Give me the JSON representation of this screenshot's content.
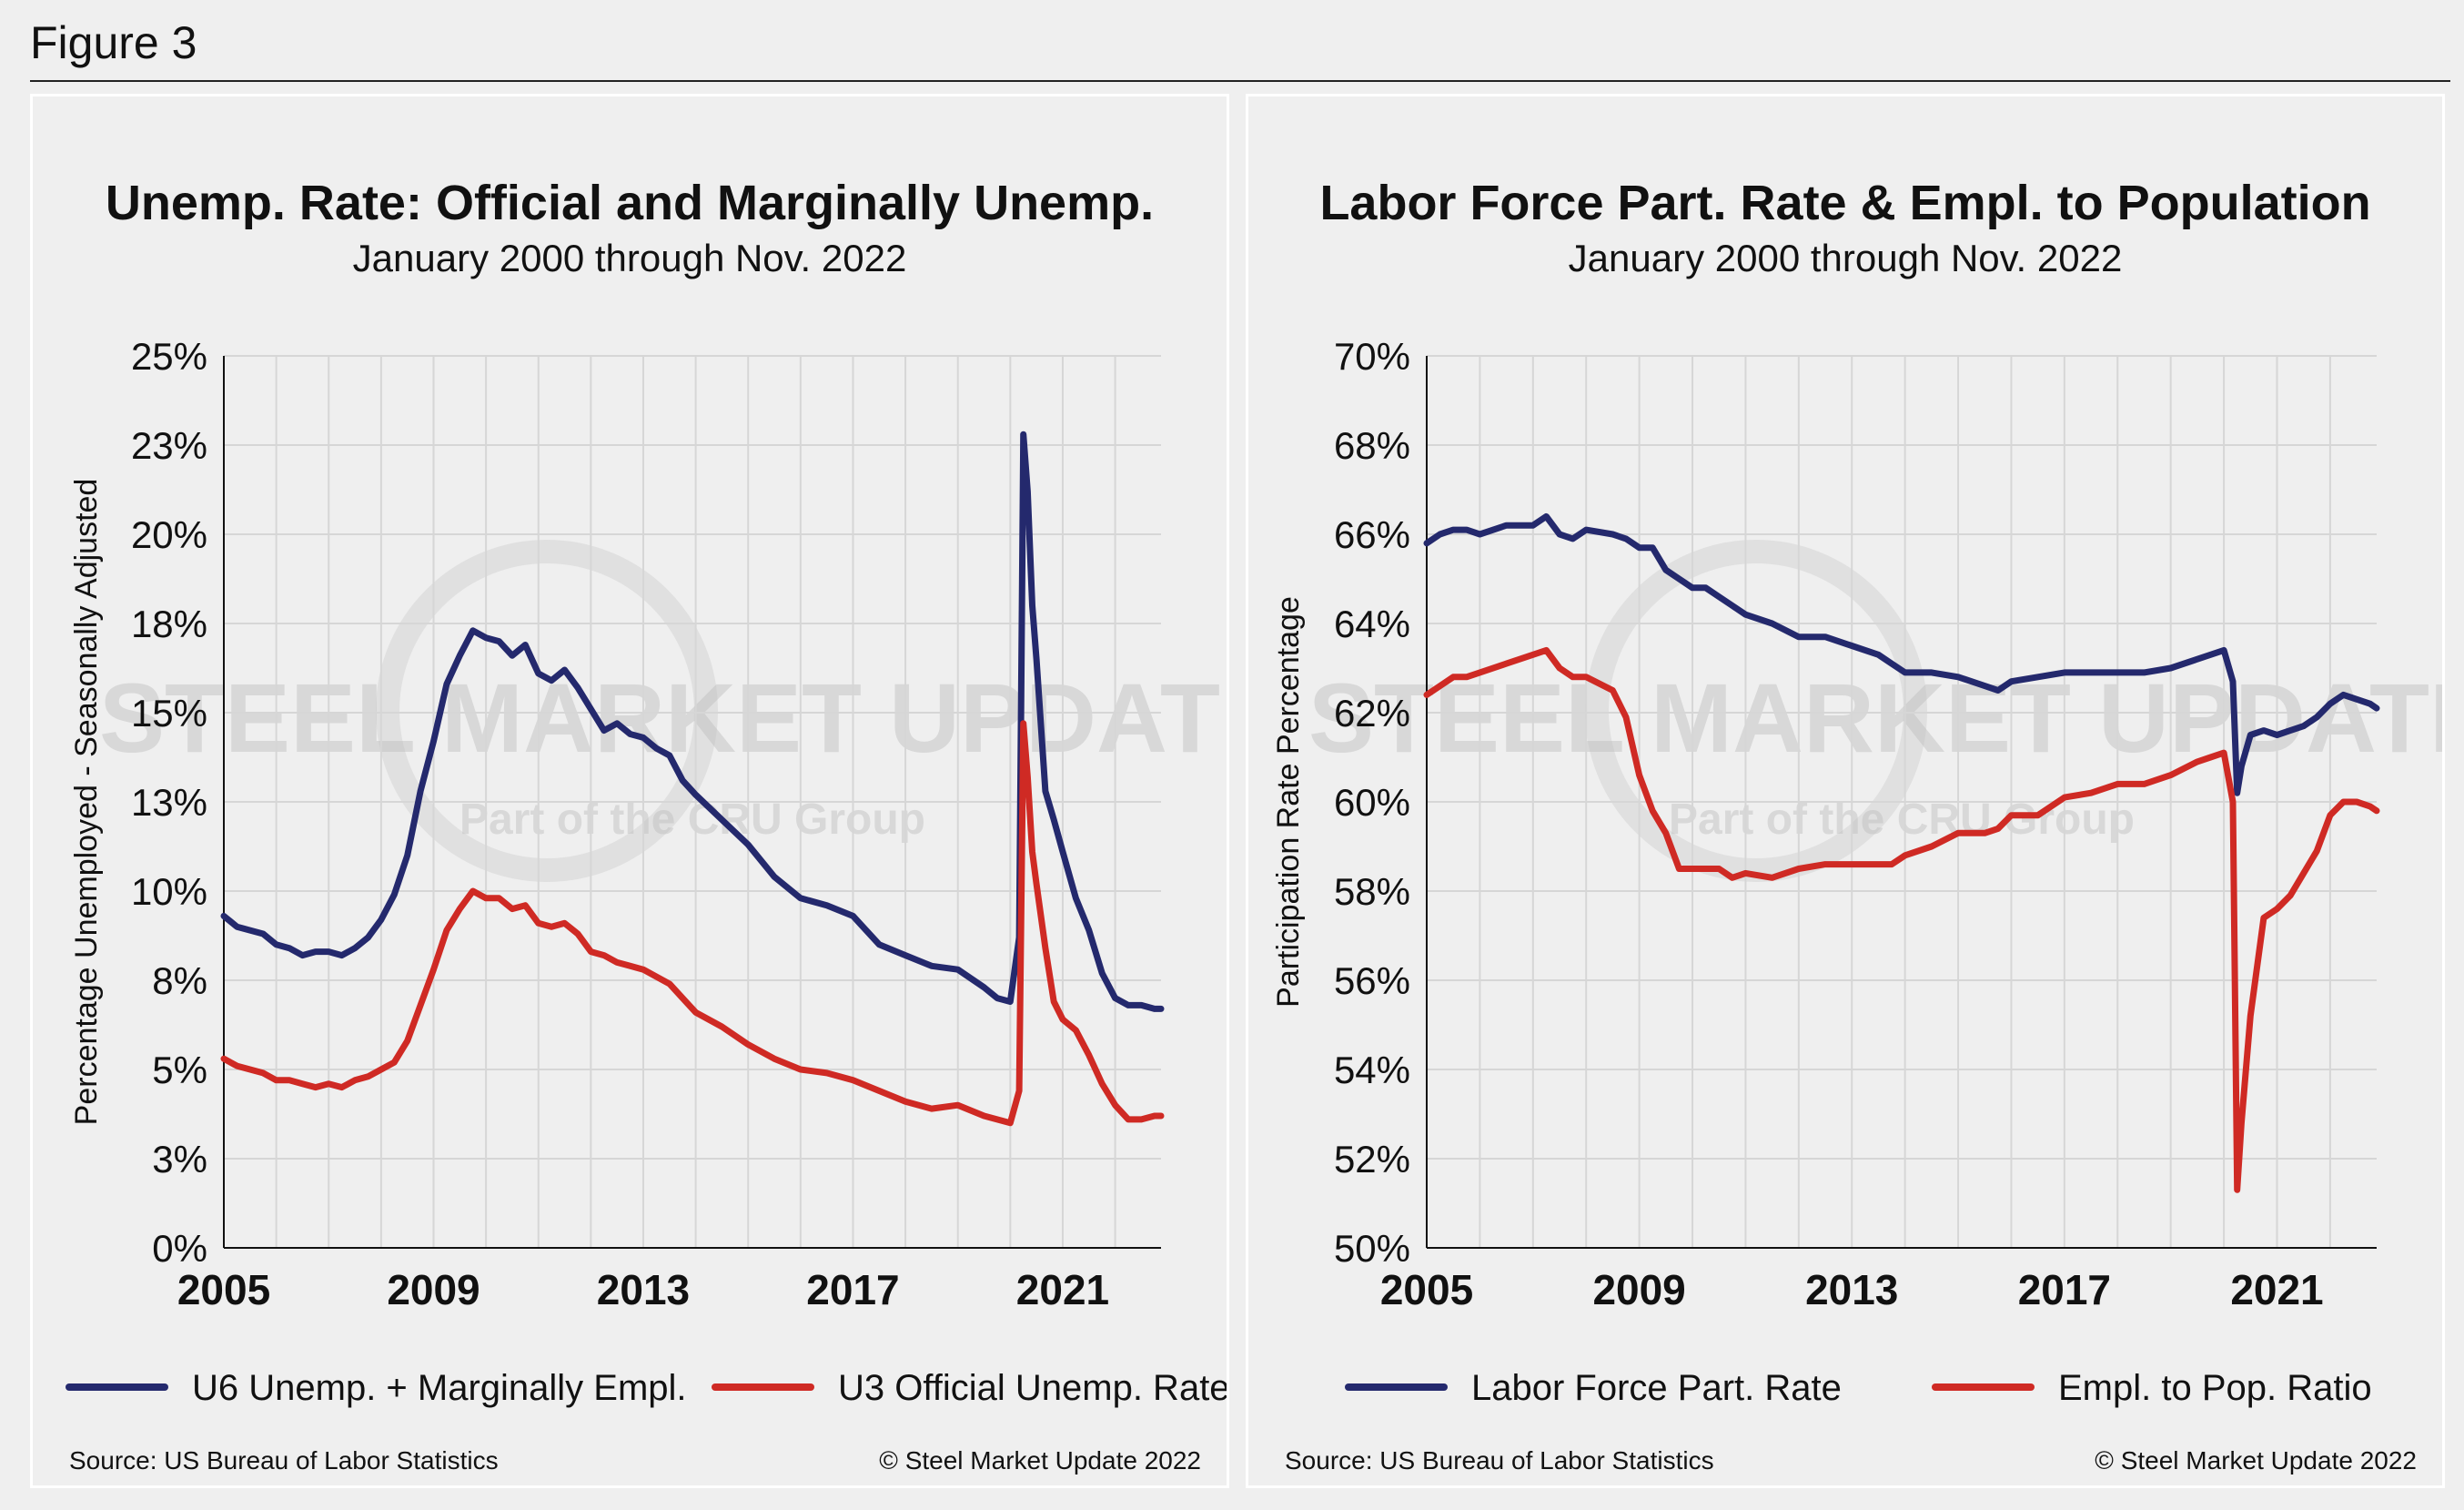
{
  "figure_label": "Figure 3",
  "colors": {
    "u6": "#24296d",
    "u3": "#cf2a24",
    "grid": "#d6d6d6",
    "axis": "#111111"
  },
  "watermark": {
    "brand": "STEEL MARKET UPDATE",
    "sub": "Part of the CRU Group",
    "logo": "CRU"
  },
  "chart_data": [
    {
      "type": "line",
      "title": "Unemp. Rate: Official and Marginally Unemp.",
      "subtitle": "January 2000 through Nov. 2022",
      "xlabel": "",
      "ylabel": "Percentage Unemployed - Seasonally Adjusted",
      "xlim": [
        2005.0,
        2022.875
      ],
      "ylim": [
        0,
        25
      ],
      "x_ticks": [
        2005,
        2009,
        2013,
        2017,
        2021
      ],
      "y_ticks": [
        0,
        2.5,
        5,
        7.5,
        10,
        12.5,
        15,
        17.5,
        20,
        22.5,
        25
      ],
      "y_tick_labels": [
        "0%",
        "3%",
        "5%",
        "8%",
        "10%",
        "13%",
        "15%",
        "18%",
        "20%",
        "23%",
        "25%"
      ],
      "legend_position": "bottom",
      "series": [
        {
          "name": "U6 Unemp. + Marginally Empl.",
          "x": [
            2005.0,
            2005.25,
            2005.5,
            2005.75,
            2006.0,
            2006.25,
            2006.5,
            2006.75,
            2007.0,
            2007.25,
            2007.5,
            2007.75,
            2008.0,
            2008.25,
            2008.5,
            2008.75,
            2009.0,
            2009.25,
            2009.5,
            2009.75,
            2010.0,
            2010.25,
            2010.5,
            2010.75,
            2011.0,
            2011.25,
            2011.5,
            2011.75,
            2012.0,
            2012.25,
            2012.5,
            2012.75,
            2013.0,
            2013.25,
            2013.5,
            2013.75,
            2014.0,
            2014.5,
            2015.0,
            2015.5,
            2016.0,
            2016.5,
            2017.0,
            2017.5,
            2018.0,
            2018.5,
            2019.0,
            2019.5,
            2019.75,
            2020.0,
            2020.17,
            2020.25,
            2020.33,
            2020.42,
            2020.5,
            2020.67,
            2020.83,
            2021.0,
            2021.25,
            2021.5,
            2021.75,
            2022.0,
            2022.25,
            2022.5,
            2022.75,
            2022.875
          ],
          "values": [
            9.3,
            9.0,
            8.9,
            8.8,
            8.5,
            8.4,
            8.2,
            8.3,
            8.3,
            8.2,
            8.4,
            8.7,
            9.2,
            9.9,
            11.0,
            12.8,
            14.2,
            15.8,
            16.6,
            17.3,
            17.1,
            17.0,
            16.6,
            16.9,
            16.1,
            15.9,
            16.2,
            15.7,
            15.1,
            14.5,
            14.7,
            14.4,
            14.3,
            14.0,
            13.8,
            13.1,
            12.7,
            12.0,
            11.3,
            10.4,
            9.8,
            9.6,
            9.3,
            8.5,
            8.2,
            7.9,
            7.8,
            7.3,
            7.0,
            6.9,
            8.7,
            22.8,
            21.2,
            18.0,
            16.5,
            12.8,
            12.0,
            11.1,
            9.8,
            8.9,
            7.7,
            7.0,
            6.8,
            6.8,
            6.7,
            6.7
          ]
        },
        {
          "name": "U3 Official Unemp. Rate",
          "x": [
            2005.0,
            2005.25,
            2005.5,
            2005.75,
            2006.0,
            2006.25,
            2006.5,
            2006.75,
            2007.0,
            2007.25,
            2007.5,
            2007.75,
            2008.0,
            2008.25,
            2008.5,
            2008.75,
            2009.0,
            2009.25,
            2009.5,
            2009.75,
            2010.0,
            2010.25,
            2010.5,
            2010.75,
            2011.0,
            2011.25,
            2011.5,
            2011.75,
            2012.0,
            2012.25,
            2012.5,
            2012.75,
            2013.0,
            2013.25,
            2013.5,
            2013.75,
            2014.0,
            2014.5,
            2015.0,
            2015.5,
            2016.0,
            2016.5,
            2017.0,
            2017.5,
            2018.0,
            2018.5,
            2019.0,
            2019.5,
            2019.75,
            2020.0,
            2020.17,
            2020.25,
            2020.33,
            2020.42,
            2020.5,
            2020.67,
            2020.83,
            2021.0,
            2021.25,
            2021.5,
            2021.75,
            2022.0,
            2022.25,
            2022.5,
            2022.75,
            2022.875
          ],
          "values": [
            5.3,
            5.1,
            5.0,
            4.9,
            4.7,
            4.7,
            4.6,
            4.5,
            4.6,
            4.5,
            4.7,
            4.8,
            5.0,
            5.2,
            5.8,
            6.8,
            7.8,
            8.9,
            9.5,
            10.0,
            9.8,
            9.8,
            9.5,
            9.6,
            9.1,
            9.0,
            9.1,
            8.8,
            8.3,
            8.2,
            8.0,
            7.9,
            7.8,
            7.6,
            7.4,
            7.0,
            6.6,
            6.2,
            5.7,
            5.3,
            5.0,
            4.9,
            4.7,
            4.4,
            4.1,
            3.9,
            4.0,
            3.7,
            3.6,
            3.5,
            4.4,
            14.7,
            13.2,
            11.1,
            10.2,
            8.4,
            6.9,
            6.4,
            6.1,
            5.4,
            4.6,
            4.0,
            3.6,
            3.6,
            3.7,
            3.7
          ]
        }
      ]
    },
    {
      "type": "line",
      "title": "Labor Force Part. Rate & Empl. to Population",
      "subtitle": "January 2000 through Nov. 2022",
      "xlabel": "",
      "ylabel": "Participation Rate Percentage",
      "xlim": [
        2005.0,
        2022.875
      ],
      "ylim": [
        50,
        70
      ],
      "x_ticks": [
        2005,
        2009,
        2013,
        2017,
        2021
      ],
      "y_ticks": [
        50,
        52,
        54,
        56,
        58,
        60,
        62,
        64,
        66,
        68,
        70
      ],
      "y_tick_labels": [
        "50%",
        "52%",
        "54%",
        "56%",
        "58%",
        "60%",
        "62%",
        "64%",
        "66%",
        "68%",
        "70%"
      ],
      "legend_position": "bottom",
      "series": [
        {
          "name": "Labor Force Part. Rate",
          "x": [
            2005.0,
            2005.25,
            2005.5,
            2005.75,
            2006.0,
            2006.5,
            2007.0,
            2007.25,
            2007.5,
            2007.75,
            2008.0,
            2008.5,
            2008.75,
            2009.0,
            2009.25,
            2009.5,
            2009.75,
            2010.0,
            2010.25,
            2010.5,
            2010.75,
            2011.0,
            2011.5,
            2012.0,
            2012.5,
            2013.0,
            2013.5,
            2013.75,
            2014.0,
            2014.5,
            2015.0,
            2015.5,
            2015.75,
            2016.0,
            2016.5,
            2017.0,
            2017.5,
            2018.0,
            2018.5,
            2019.0,
            2019.5,
            2019.75,
            2020.0,
            2020.17,
            2020.25,
            2020.33,
            2020.5,
            2020.75,
            2021.0,
            2021.25,
            2021.5,
            2021.75,
            2022.0,
            2022.25,
            2022.5,
            2022.75,
            2022.875
          ],
          "values": [
            65.8,
            66.0,
            66.1,
            66.1,
            66.0,
            66.2,
            66.2,
            66.4,
            66.0,
            65.9,
            66.1,
            66.0,
            65.9,
            65.7,
            65.7,
            65.2,
            65.0,
            64.8,
            64.8,
            64.6,
            64.4,
            64.2,
            64.0,
            63.7,
            63.7,
            63.5,
            63.3,
            63.1,
            62.9,
            62.9,
            62.8,
            62.6,
            62.5,
            62.7,
            62.8,
            62.9,
            62.9,
            62.9,
            62.9,
            63.0,
            63.2,
            63.3,
            63.4,
            62.7,
            60.2,
            60.8,
            61.5,
            61.6,
            61.5,
            61.6,
            61.7,
            61.9,
            62.2,
            62.4,
            62.3,
            62.2,
            62.1
          ]
        },
        {
          "name": "Empl. to Pop. Ratio",
          "x": [
            2005.0,
            2005.25,
            2005.5,
            2005.75,
            2006.0,
            2006.5,
            2007.0,
            2007.25,
            2007.5,
            2007.75,
            2008.0,
            2008.5,
            2008.75,
            2009.0,
            2009.25,
            2009.5,
            2009.75,
            2010.0,
            2010.25,
            2010.5,
            2010.75,
            2011.0,
            2011.5,
            2012.0,
            2012.5,
            2013.0,
            2013.5,
            2013.75,
            2014.0,
            2014.5,
            2015.0,
            2015.5,
            2015.75,
            2016.0,
            2016.5,
            2017.0,
            2017.5,
            2018.0,
            2018.5,
            2019.0,
            2019.5,
            2019.75,
            2020.0,
            2020.17,
            2020.25,
            2020.33,
            2020.5,
            2020.75,
            2021.0,
            2021.25,
            2021.5,
            2021.75,
            2022.0,
            2022.25,
            2022.5,
            2022.75,
            2022.875
          ],
          "values": [
            62.4,
            62.6,
            62.8,
            62.8,
            62.9,
            63.1,
            63.3,
            63.4,
            63.0,
            62.8,
            62.8,
            62.5,
            61.9,
            60.6,
            59.8,
            59.3,
            58.5,
            58.5,
            58.5,
            58.5,
            58.3,
            58.4,
            58.3,
            58.5,
            58.6,
            58.6,
            58.6,
            58.6,
            58.8,
            59.0,
            59.3,
            59.3,
            59.4,
            59.7,
            59.7,
            60.1,
            60.2,
            60.4,
            60.4,
            60.6,
            60.9,
            61.0,
            61.1,
            60.0,
            51.3,
            52.8,
            55.2,
            57.4,
            57.6,
            57.9,
            58.4,
            58.9,
            59.7,
            60.0,
            60.0,
            59.9,
            59.8
          ]
        }
      ]
    }
  ],
  "panels": [
    {
      "source": "Source: US Bureau of Labor Statistics",
      "copyright": "© Steel Market Update 2022"
    },
    {
      "source": "Source: US Bureau of Labor Statistics",
      "copyright": "© Steel Market Update 2022"
    }
  ]
}
